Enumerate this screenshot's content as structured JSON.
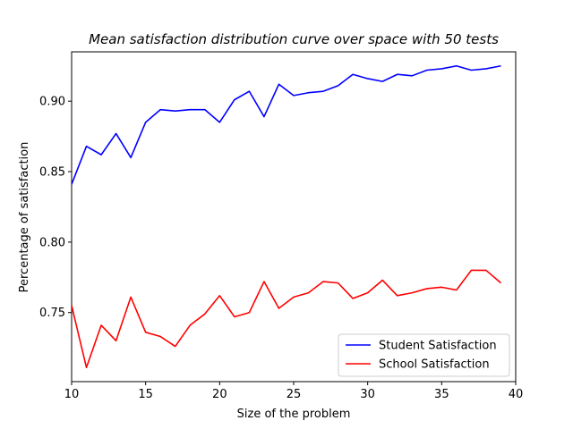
{
  "chart_data": {
    "type": "line",
    "title": "Mean satisfaction distribution curve over space with 50 tests",
    "xlabel": "Size of the problem",
    "ylabel": "Percentage of satisfaction",
    "xlim": [
      10,
      40
    ],
    "ylim": [
      0.701,
      0.935
    ],
    "xticks": [
      10,
      15,
      20,
      25,
      30,
      35,
      40
    ],
    "yticks": [
      0.75,
      0.8,
      0.85,
      0.9
    ],
    "ytick_labels": [
      "0.75",
      "0.80",
      "0.85",
      "0.90"
    ],
    "legend_position": "lower-right",
    "grid": false,
    "x": [
      10,
      11,
      12,
      13,
      14,
      15,
      16,
      17,
      18,
      19,
      20,
      21,
      22,
      23,
      24,
      25,
      26,
      27,
      28,
      29,
      30,
      31,
      32,
      33,
      34,
      35,
      36,
      37,
      38,
      39
    ],
    "series": [
      {
        "name": "Student Satisfaction",
        "color": "#0000ff",
        "values": [
          0.841,
          0.868,
          0.862,
          0.877,
          0.86,
          0.885,
          0.894,
          0.893,
          0.894,
          0.894,
          0.885,
          0.901,
          0.907,
          0.889,
          0.912,
          0.904,
          0.906,
          0.907,
          0.911,
          0.919,
          0.916,
          0.914,
          0.919,
          0.918,
          0.922,
          0.923,
          0.925,
          0.922,
          0.923,
          0.925
        ]
      },
      {
        "name": "School Satisfaction",
        "color": "#ff0000",
        "values": [
          0.755,
          0.711,
          0.741,
          0.73,
          0.761,
          0.736,
          0.733,
          0.726,
          0.741,
          0.749,
          0.762,
          0.747,
          0.75,
          0.772,
          0.753,
          0.761,
          0.764,
          0.772,
          0.771,
          0.76,
          0.764,
          0.773,
          0.762,
          0.764,
          0.767,
          0.768,
          0.766,
          0.78,
          0.78,
          0.771
        ]
      }
    ]
  }
}
